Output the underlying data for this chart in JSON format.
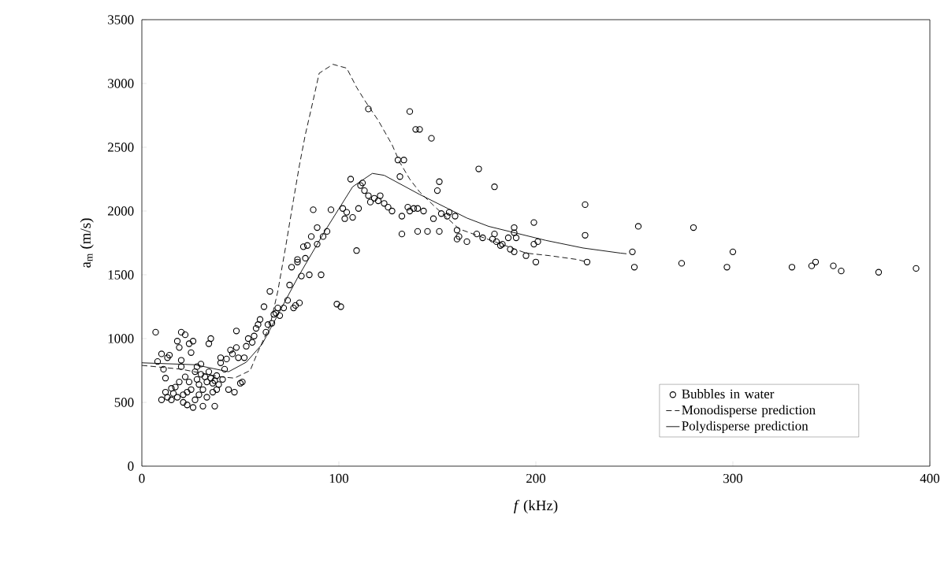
{
  "chart_data": {
    "type": "scatter",
    "xlabel": "*f* (kHz)",
    "ylabel": "a$_{m}$ (m/s)",
    "xlim": [
      0,
      400
    ],
    "ylim": [
      0,
      3500
    ],
    "xticks": [
      0,
      100,
      200,
      300,
      400
    ],
    "yticks": [
      0,
      500,
      1000,
      1500,
      2000,
      2500,
      3000,
      3500
    ],
    "legend": "bottom right",
    "series": [
      {
        "name": "Bubbles in water",
        "marker": "circle",
        "color": "#000000",
        "x": [
          7,
          8,
          10,
          10,
          11,
          12,
          12,
          13,
          13,
          14,
          15,
          15,
          16,
          17,
          18,
          18,
          19,
          19,
          20,
          20,
          20,
          21,
          21,
          22,
          22,
          23,
          23,
          24,
          24,
          25,
          25,
          26,
          26,
          27,
          27,
          28,
          28,
          29,
          29,
          30,
          30,
          31,
          31,
          32,
          33,
          33,
          34,
          34,
          35,
          35,
          36,
          36,
          37,
          37,
          38,
          38,
          39,
          40,
          40,
          41,
          42,
          43,
          44,
          45,
          46,
          47,
          48,
          48,
          49,
          50,
          51,
          52,
          53,
          54,
          56,
          57,
          58,
          59,
          60,
          62,
          63,
          64,
          65,
          66,
          67,
          68,
          69,
          70,
          72,
          74,
          75,
          76,
          77,
          78,
          79,
          79,
          80,
          81,
          82,
          83,
          84,
          85,
          86,
          87,
          89,
          89,
          91,
          92,
          94,
          96,
          99,
          101,
          102,
          103,
          104,
          106,
          107,
          109,
          110,
          111,
          112,
          113,
          115,
          115,
          116,
          118,
          120,
          121,
          123,
          125,
          127,
          130,
          131,
          132,
          132,
          133,
          135,
          136,
          136,
          138,
          139,
          140,
          140,
          141,
          143,
          145,
          147,
          148,
          150,
          151,
          151,
          152,
          155,
          156,
          159,
          160,
          160,
          161,
          165,
          170,
          171,
          173,
          178,
          179,
          179,
          180,
          182,
          183,
          186,
          187,
          189,
          189,
          189,
          190,
          195,
          199,
          199,
          200,
          201,
          225,
          225,
          226,
          249,
          250,
          252,
          274,
          280,
          297,
          300,
          330,
          340,
          342,
          351,
          355,
          374,
          393
        ],
        "values": [
          1050,
          820,
          880,
          520,
          760,
          690,
          580,
          540,
          850,
          870,
          610,
          520,
          570,
          620,
          540,
          980,
          930,
          660,
          830,
          780,
          1050,
          560,
          500,
          700,
          1030,
          580,
          480,
          960,
          660,
          890,
          600,
          460,
          980,
          740,
          520,
          780,
          680,
          640,
          560,
          800,
          720,
          470,
          600,
          700,
          660,
          540,
          960,
          740,
          1000,
          690,
          650,
          580,
          670,
          470,
          710,
          600,
          640,
          810,
          850,
          680,
          760,
          840,
          600,
          910,
          880,
          580,
          1060,
          930,
          850,
          650,
          660,
          850,
          940,
          1000,
          970,
          1020,
          1080,
          1110,
          1150,
          1250,
          1050,
          1110,
          1370,
          1120,
          1190,
          1200,
          1240,
          1180,
          1240,
          1300,
          1420,
          1560,
          1240,
          1260,
          1600,
          1620,
          1280,
          1490,
          1720,
          1630,
          1730,
          1500,
          1800,
          2010,
          1740,
          1870,
          1500,
          1800,
          1840,
          2010,
          1270,
          1250,
          2020,
          1940,
          1990,
          2250,
          1950,
          1690,
          2020,
          2200,
          2220,
          2160,
          2800,
          2120,
          2070,
          2100,
          2080,
          2120,
          2060,
          2030,
          2000,
          2400,
          2270,
          1820,
          1960,
          2400,
          2030,
          2780,
          2000,
          2020,
          2640,
          1840,
          2020,
          2640,
          2000,
          1840,
          2570,
          1940,
          2160,
          2230,
          1840,
          1980,
          1960,
          1990,
          1960,
          1850,
          1780,
          1800,
          1760,
          1820,
          2330,
          1790,
          1780,
          1820,
          2190,
          1760,
          1730,
          1740,
          1790,
          1700,
          1830,
          1870,
          1680,
          1790,
          1650,
          1910,
          1740,
          1600,
          1760,
          2050,
          1810,
          1600,
          1680,
          1560,
          1880,
          1590,
          1870,
          1560,
          1680,
          1560,
          1570,
          1600,
          1570,
          1530,
          1520,
          1550
        ]
      },
      {
        "name": "Monodisperse prediction",
        "type": "line",
        "line_style": "dashed",
        "color": "#000000",
        "x": [
          0,
          20,
          40,
          47,
          55,
          59,
          65,
          69,
          73,
          77,
          80,
          83,
          87,
          90,
          97,
          104,
          109,
          113,
          120,
          127,
          131,
          136,
          141,
          149,
          161,
          179,
          195,
          207,
          221,
          226
        ],
        "values": [
          790,
          760,
          700,
          690,
          750,
          900,
          1100,
          1370,
          1720,
          2090,
          2360,
          2600,
          2870,
          3080,
          3150,
          3120,
          2970,
          2870,
          2710,
          2520,
          2380,
          2250,
          2150,
          2030,
          1860,
          1760,
          1670,
          1650,
          1620,
          1600
        ]
      },
      {
        "name": "Polydisperse prediction",
        "type": "line",
        "line_style": "solid",
        "color": "#000000",
        "x": [
          0,
          27,
          44,
          53,
          61,
          69,
          79,
          93,
          107,
          117,
          123,
          141,
          165,
          176,
          205,
          224,
          243,
          246
        ],
        "values": [
          810,
          795,
          740,
          815,
          955,
          1185,
          1475,
          1845,
          2190,
          2295,
          2280,
          2130,
          1945,
          1880,
          1770,
          1710,
          1670,
          1665
        ]
      }
    ]
  }
}
